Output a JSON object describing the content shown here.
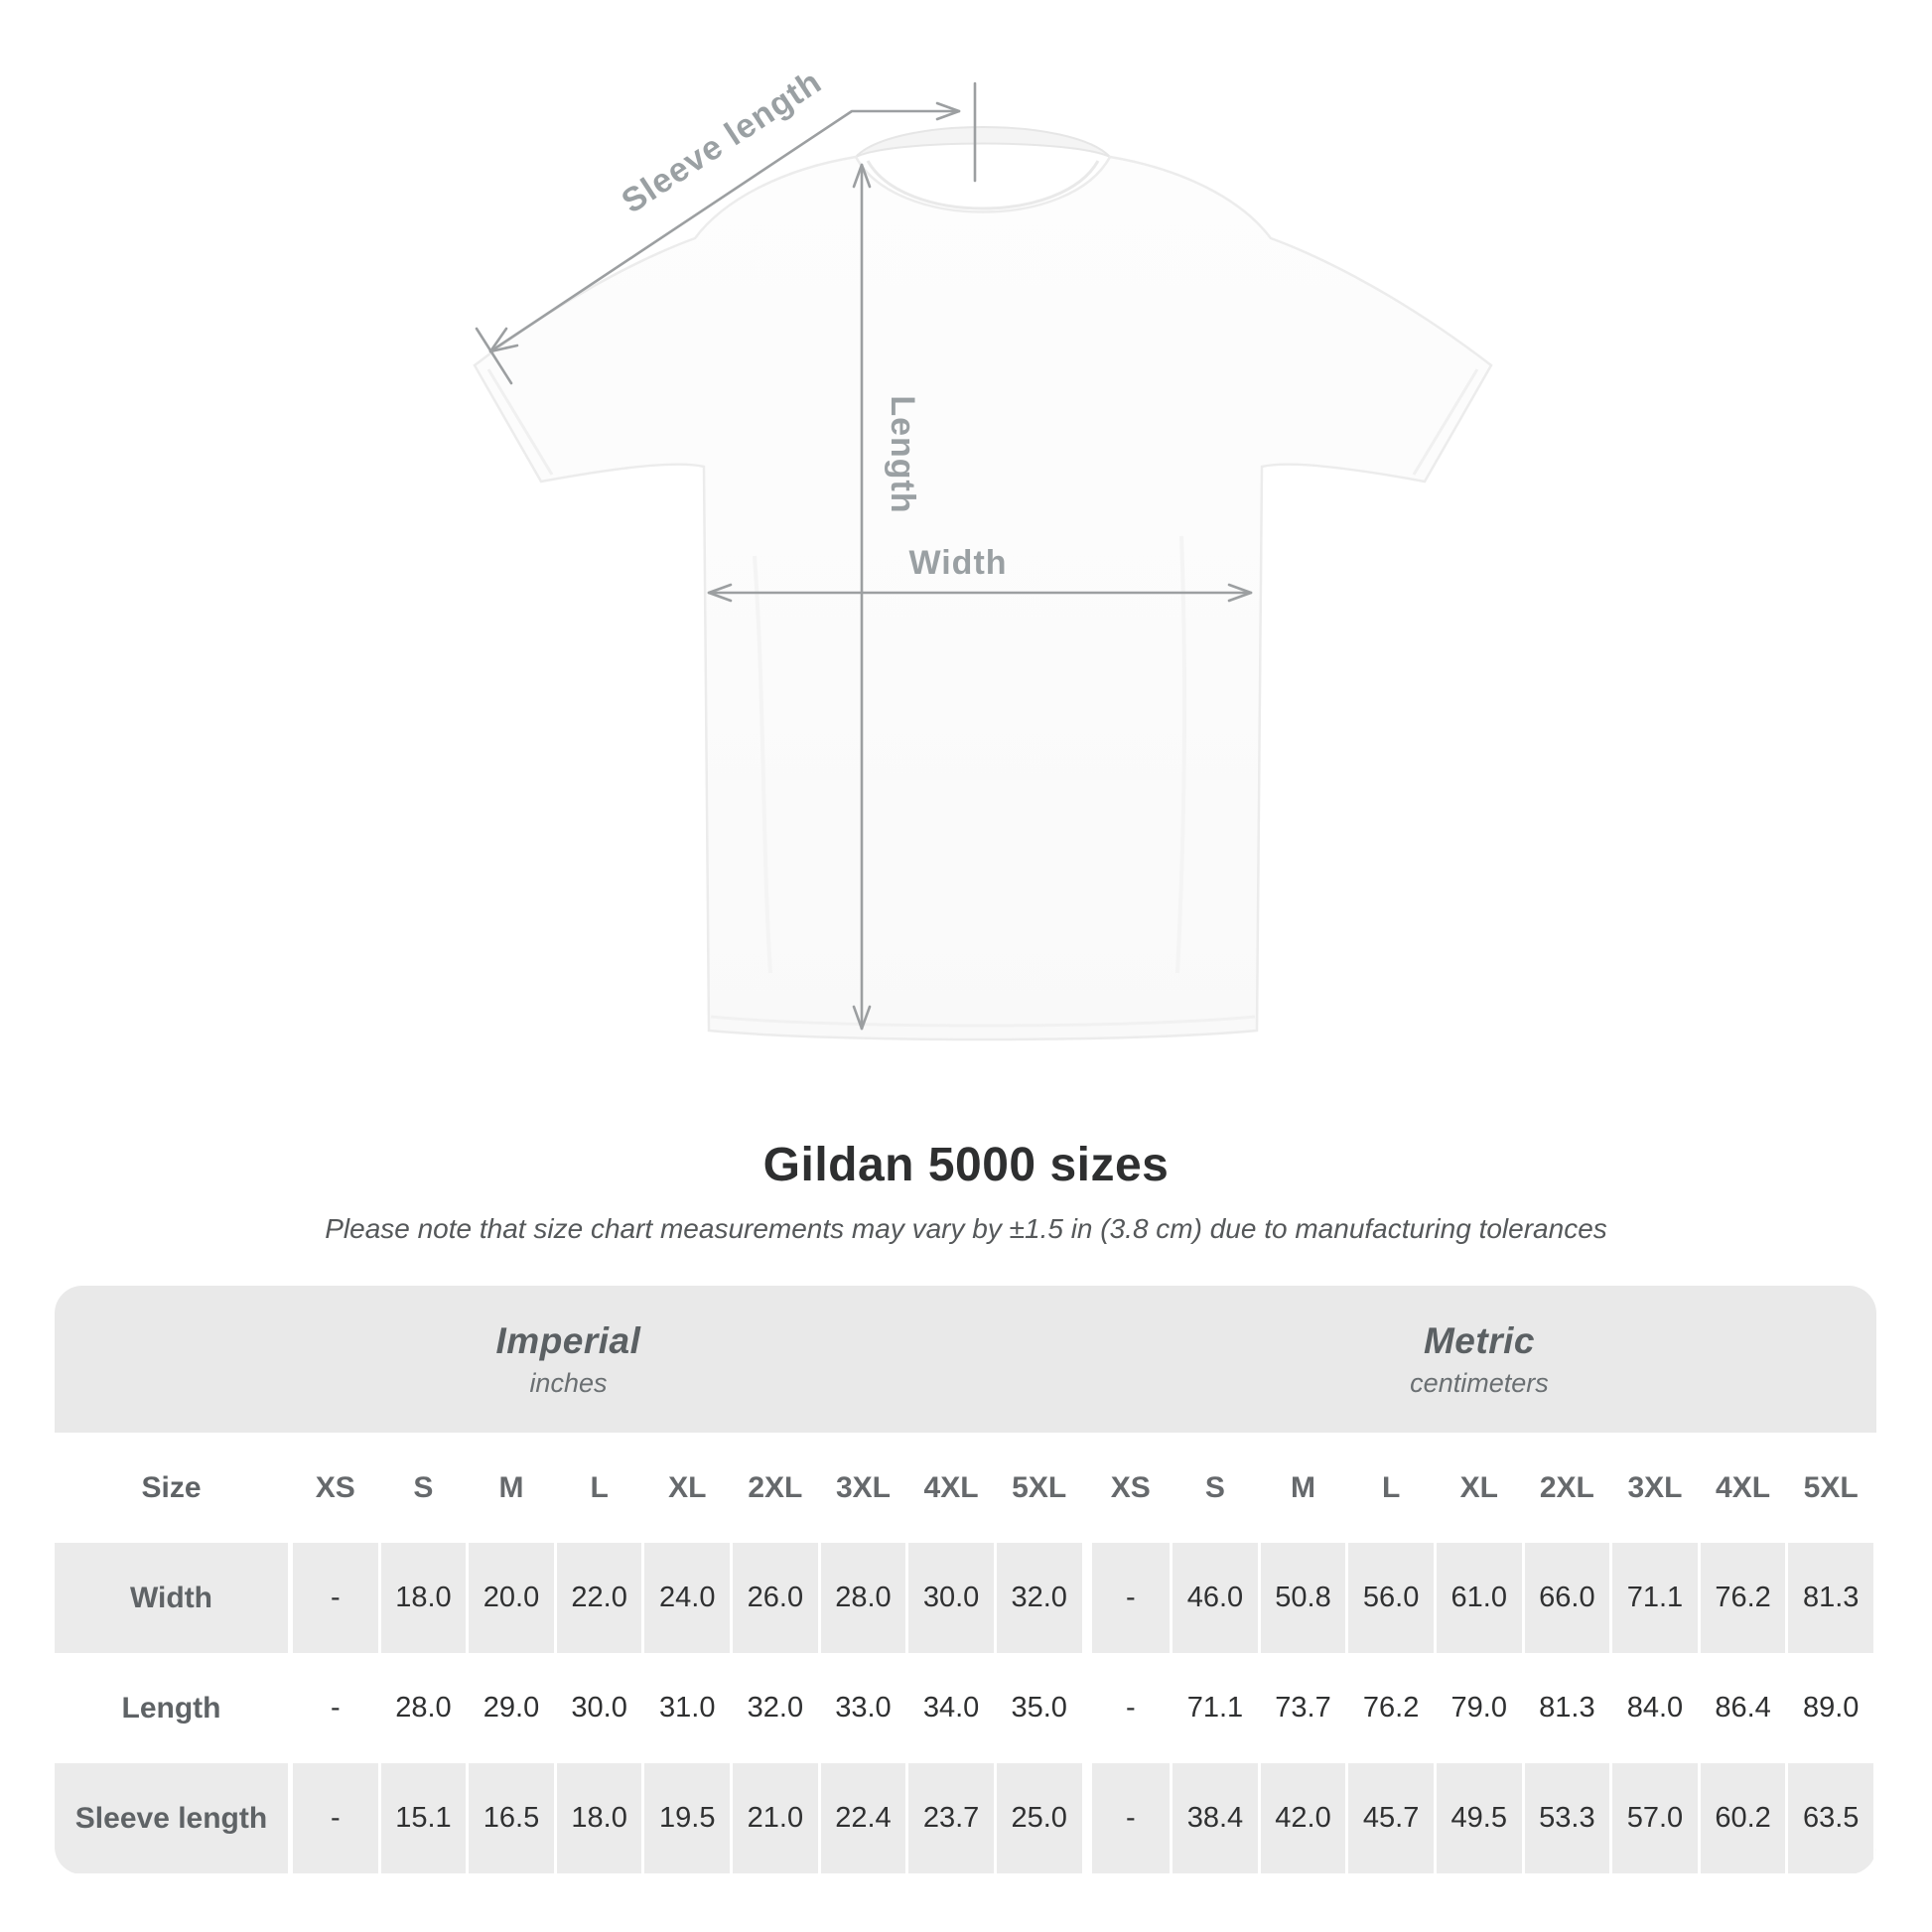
{
  "diagram": {
    "sleeve_length_label": "Sleeve length",
    "length_label": "Length",
    "width_label": "Width"
  },
  "title": "Gildan 5000 sizes",
  "subtitle": "Please note that size chart measurements may vary by ±1.5 in (3.8 cm) due to manufacturing tolerances",
  "table": {
    "size_header": "Size",
    "unit_groups": [
      {
        "name": "Imperial",
        "unit": "inches"
      },
      {
        "name": "Metric",
        "unit": "centimeters"
      }
    ],
    "sizes": [
      "XS",
      "S",
      "M",
      "L",
      "XL",
      "2XL",
      "3XL",
      "4XL",
      "5XL"
    ],
    "rows": [
      {
        "label": "Width",
        "imperial": [
          "-",
          "18.0",
          "20.0",
          "22.0",
          "24.0",
          "26.0",
          "28.0",
          "30.0",
          "32.0"
        ],
        "metric": [
          "-",
          "46.0",
          "50.8",
          "56.0",
          "61.0",
          "66.0",
          "71.1",
          "76.2",
          "81.3"
        ]
      },
      {
        "label": "Length",
        "imperial": [
          "-",
          "28.0",
          "29.0",
          "30.0",
          "31.0",
          "32.0",
          "33.0",
          "34.0",
          "35.0"
        ],
        "metric": [
          "-",
          "71.1",
          "73.7",
          "76.2",
          "79.0",
          "81.3",
          "84.0",
          "86.4",
          "89.0"
        ]
      },
      {
        "label": "Sleeve length",
        "imperial": [
          "-",
          "15.1",
          "16.5",
          "18.0",
          "19.5",
          "21.0",
          "22.4",
          "23.7",
          "25.0"
        ],
        "metric": [
          "-",
          "38.4",
          "42.0",
          "45.7",
          "49.5",
          "53.3",
          "57.0",
          "60.2",
          "63.5"
        ]
      }
    ]
  },
  "chart_data": {
    "type": "table",
    "title": "Gildan 5000 sizes",
    "note": "Please note that size chart measurements may vary by ±1.5 in (3.8 cm) due to manufacturing tolerances",
    "columns": [
      "XS",
      "S",
      "M",
      "L",
      "XL",
      "2XL",
      "3XL",
      "4XL",
      "5XL"
    ],
    "units": [
      "inches",
      "centimeters"
    ],
    "series": [
      {
        "name": "Width (in)",
        "values": [
          null,
          18.0,
          20.0,
          22.0,
          24.0,
          26.0,
          28.0,
          30.0,
          32.0
        ]
      },
      {
        "name": "Length (in)",
        "values": [
          null,
          28.0,
          29.0,
          30.0,
          31.0,
          32.0,
          33.0,
          34.0,
          35.0
        ]
      },
      {
        "name": "Sleeve length (in)",
        "values": [
          null,
          15.1,
          16.5,
          18.0,
          19.5,
          21.0,
          22.4,
          23.7,
          25.0
        ]
      },
      {
        "name": "Width (cm)",
        "values": [
          null,
          46.0,
          50.8,
          56.0,
          61.0,
          66.0,
          71.1,
          76.2,
          81.3
        ]
      },
      {
        "name": "Length (cm)",
        "values": [
          null,
          71.1,
          73.7,
          76.2,
          79.0,
          81.3,
          84.0,
          86.4,
          89.0
        ]
      },
      {
        "name": "Sleeve length (cm)",
        "values": [
          null,
          38.4,
          42.0,
          45.7,
          49.5,
          53.3,
          57.0,
          60.2,
          63.5
        ]
      }
    ]
  },
  "colors": {
    "row_gray": "#ebebeb",
    "band_gray": "#e9e9e9",
    "measure_line": "#9c9fa1",
    "measure_label": "#9aa0a3",
    "title_text": "#2e2f30",
    "table_label_text": "#5f6366",
    "value_text": "#2f3031"
  }
}
